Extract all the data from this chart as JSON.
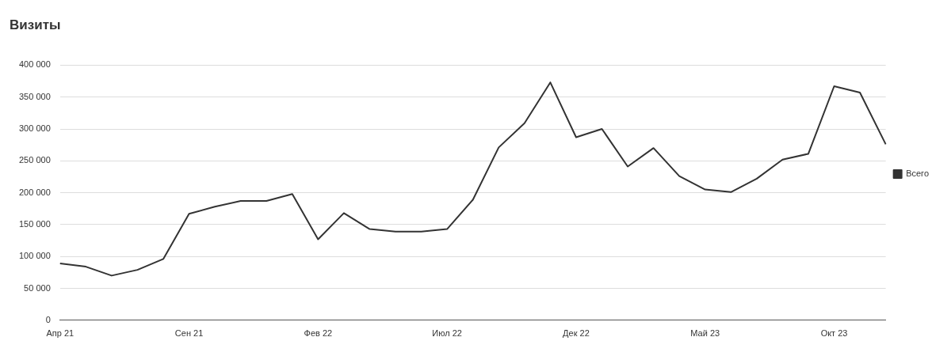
{
  "chart_data": {
    "type": "line",
    "title": "Визиты",
    "categories": [
      "Апр 21",
      null,
      null,
      null,
      null,
      "Сен 21",
      null,
      null,
      null,
      null,
      "Фев 22",
      null,
      null,
      null,
      null,
      "Июл 22",
      null,
      null,
      null,
      null,
      "Дек 22",
      null,
      null,
      null,
      null,
      "Май 23",
      null,
      null,
      null,
      null,
      "Окт 23",
      null,
      null
    ],
    "series": [
      {
        "name": "Всего",
        "color": "#333333",
        "values": [
          89000,
          84000,
          70000,
          79000,
          96000,
          167000,
          178000,
          187000,
          187000,
          198000,
          127000,
          168000,
          143000,
          139000,
          139000,
          143000,
          189000,
          271000,
          309000,
          373000,
          287000,
          300000,
          241000,
          270000,
          226000,
          205000,
          201000,
          222000,
          252000,
          261000,
          367000,
          357000,
          276000
        ]
      }
    ],
    "ylim": [
      0,
      400000
    ],
    "yticks": [
      0,
      {
        "value": 50000,
        "label": "50 000"
      },
      {
        "value": 100000,
        "label": "100 000"
      },
      {
        "value": 150000,
        "label": "150 000"
      },
      {
        "value": 200000,
        "label": "200 000"
      },
      {
        "value": 250000,
        "label": "250 000"
      },
      {
        "value": 300000,
        "label": "300 000"
      },
      {
        "value": 350000,
        "label": "350 000"
      },
      {
        "value": 400000,
        "label": "400 000"
      }
    ],
    "grid": "y",
    "legend": "right",
    "marker": "none",
    "line_style": "solid"
  }
}
